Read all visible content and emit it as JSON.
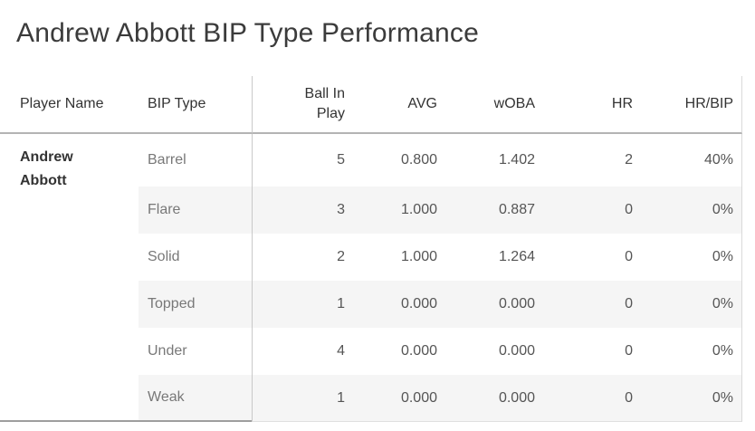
{
  "title": "Andrew Abbott BIP Type Performance",
  "chart_data": {
    "type": "table",
    "title": "Andrew Abbott BIP Type Performance",
    "columns": [
      "Player Name",
      "BIP Type",
      "Ball In Play",
      "AVG",
      "wOBA",
      "HR",
      "HR/BIP"
    ],
    "player_name": "Andrew Abbott",
    "rows": [
      [
        "Barrel",
        "5",
        "0.800",
        "1.402",
        "2",
        "40%"
      ],
      [
        "Flare",
        "3",
        "1.000",
        "0.887",
        "0",
        "0%"
      ],
      [
        "Solid",
        "2",
        "1.000",
        "1.264",
        "0",
        "0%"
      ],
      [
        "Topped",
        "1",
        "0.000",
        "0.000",
        "0",
        "0%"
      ],
      [
        "Under",
        "4",
        "0.000",
        "0.000",
        "0",
        "0%"
      ],
      [
        "Weak",
        "1",
        "0.000",
        "0.000",
        "0",
        "0%"
      ]
    ],
    "layout": {
      "banded_rows": true,
      "banding_starts_at_column": "BIP Type",
      "numeric_columns_right_aligned": true,
      "player_name_cell_merged_across_rows": true
    }
  },
  "colors": {
    "background": "#ffffff",
    "row_band": "#f5f5f5",
    "header_underline": "#b4b4b4",
    "column_divider": "#c9c9c9",
    "right_border": "#d9d9d9",
    "bottom_rule_left": "#9e9e9e",
    "title_text": "#3b3b3b",
    "header_text": "#333333",
    "player_text": "#333333",
    "bip_type_text": "#787878",
    "value_text": "#555555"
  }
}
